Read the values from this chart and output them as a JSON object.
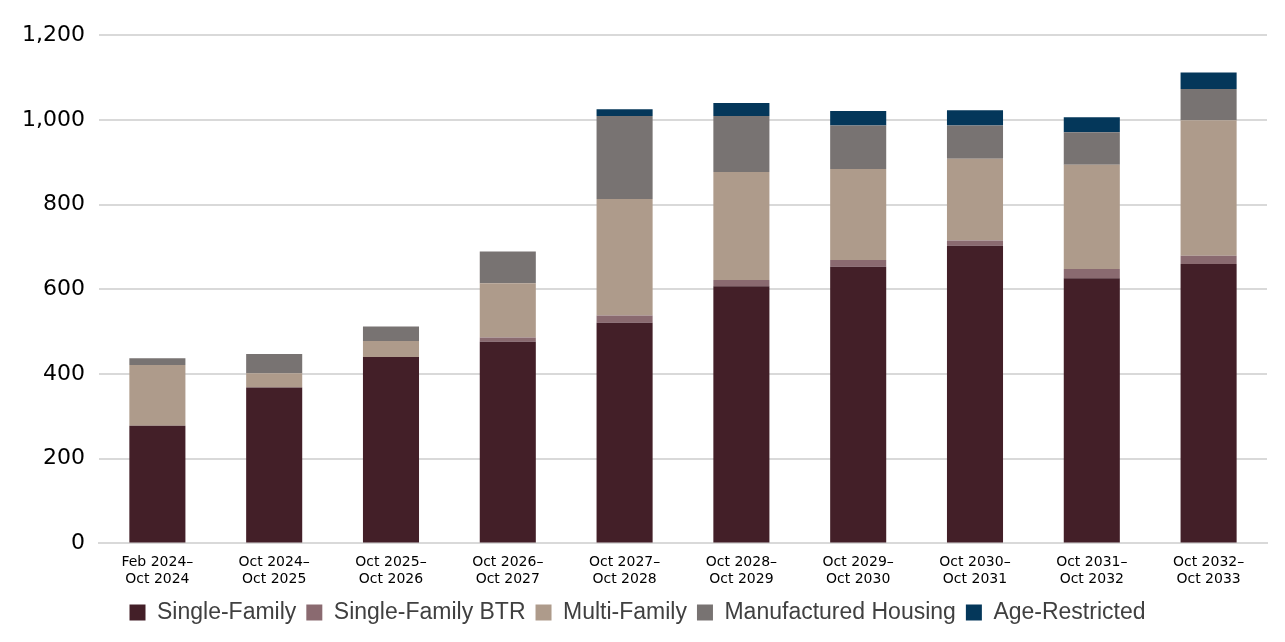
{
  "chart_data": {
    "type": "bar",
    "stacked": true,
    "categories": [
      "Feb 2024–Oct 2024",
      "Oct 2024–Oct 2025",
      "Oct 2025–Oct 2026",
      "Oct 2026–Oct 2027",
      "Oct 2027–Oct 2028",
      "Oct 2028–Oct 2029",
      "Oct 2029–Oct 2030",
      "Oct 2030–Oct 2031",
      "Oct 2031–Oct 2032",
      "Oct 2032–Oct 2033"
    ],
    "series": [
      {
        "name": "Single-Family",
        "color": "#431f28",
        "values": [
          278,
          368,
          440,
          476,
          521,
          607,
          653,
          703,
          626,
          660
        ]
      },
      {
        "name": "Single-Family BTR",
        "color": "#8a6a70",
        "values": [
          0,
          0,
          0,
          10,
          17,
          15,
          16,
          12,
          22,
          19
        ]
      },
      {
        "name": "Multi-Family",
        "color": "#ae9b8b",
        "values": [
          143,
          34,
          38,
          128,
          275,
          255,
          215,
          193,
          246,
          320
        ]
      },
      {
        "name": "Manufactured Housing",
        "color": "#787372",
        "values": [
          16,
          45,
          34,
          75,
          196,
          132,
          103,
          79,
          77,
          74
        ]
      },
      {
        "name": "Age-Restricted",
        "color": "#04375a",
        "values": [
          0,
          0,
          0,
          0,
          16,
          31,
          34,
          36,
          35,
          39
        ]
      }
    ],
    "ylim": [
      0,
      1200
    ],
    "yticks": [
      0,
      {
        "value": 200,
        "label": "200"
      },
      {
        "value": 400,
        "label": "400"
      },
      {
        "value": 600,
        "label": "600"
      },
      {
        "value": 800,
        "label": "800"
      },
      {
        "value": 1000,
        "label": "1,000"
      },
      {
        "value": 1200,
        "label": "1,200"
      }
    ],
    "grid": "y",
    "legend": "bottom"
  }
}
